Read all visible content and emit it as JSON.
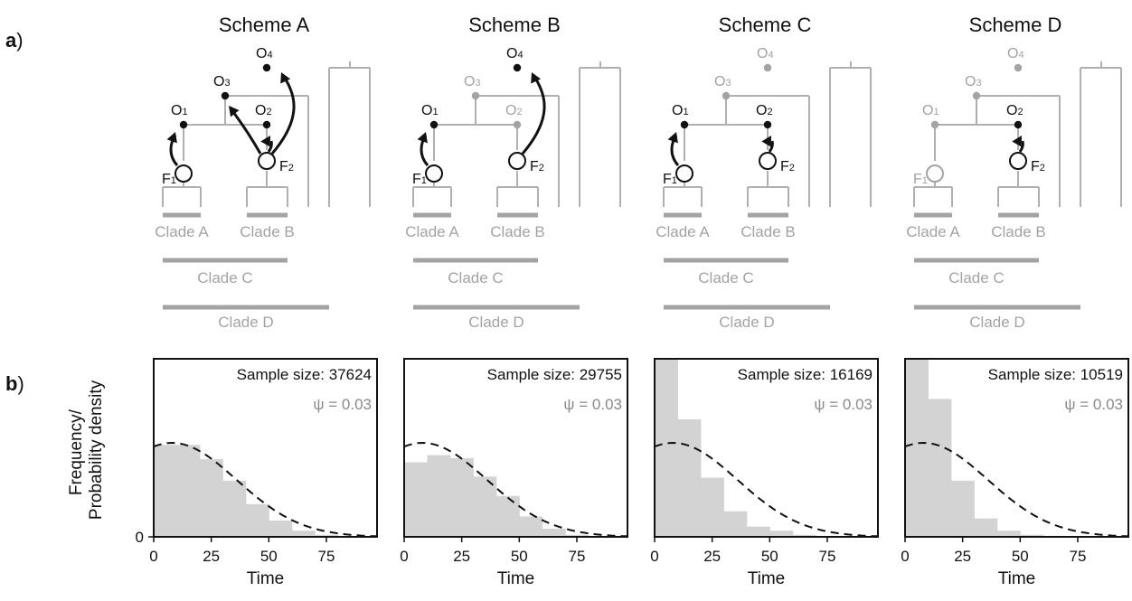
{
  "panel_labels": {
    "a": "a",
    "b": "b",
    "paren": ")"
  },
  "schemes": [
    {
      "title": "Scheme A",
      "tree_clades": [
        "Clade A",
        "Clade B",
        "Clade C",
        "Clade D"
      ],
      "nodes": {
        "O1": "active",
        "O2": "active",
        "O3": "active",
        "O4": "active",
        "F1": "active",
        "F2": "active"
      },
      "arrows": [
        "F1-O1",
        "F2-O2",
        "F2-O3",
        "F2-O4"
      ]
    },
    {
      "title": "Scheme B",
      "tree_clades": [
        "Clade A",
        "Clade B",
        "Clade C",
        "Clade D"
      ],
      "nodes": {
        "O1": "active",
        "O2": "inactive",
        "O3": "inactive",
        "O4": "active",
        "F1": "active",
        "F2": "active"
      },
      "arrows": [
        "F1-O1",
        "F2-O4"
      ]
    },
    {
      "title": "Scheme C",
      "tree_clades": [
        "Clade A",
        "Clade B",
        "Clade C",
        "Clade D"
      ],
      "nodes": {
        "O1": "active",
        "O2": "active",
        "O3": "inactive",
        "O4": "inactive",
        "F1": "active",
        "F2": "active"
      },
      "arrows": [
        "F1-O1",
        "F2-O2"
      ]
    },
    {
      "title": "Scheme D",
      "tree_clades": [
        "Clade A",
        "Clade B",
        "Clade C",
        "Clade D"
      ],
      "nodes": {
        "O1": "inactive",
        "O2": "active",
        "O3": "inactive",
        "O4": "inactive",
        "F1": "inactive",
        "F2": "active"
      },
      "arrows": [
        "F2-O2"
      ]
    }
  ],
  "node_labels": {
    "O": "O",
    "F": "F",
    "subs": [
      "1",
      "2",
      "3",
      "4"
    ]
  },
  "colors": {
    "active": "#111111",
    "inactive": "#a3a3a3",
    "tree": "#b0b0b0",
    "bars": "#d3d3d3",
    "clade_bar": "#a3a3a3"
  },
  "chart_data": [
    {
      "type": "bar",
      "title": "Scheme A",
      "annotation": "Sample size: 37624",
      "psi": "ψ = 0.03",
      "xlabel": "Time",
      "ylabel": "Frequency/\nProbability density",
      "xlim": [
        0,
        97
      ],
      "xticks": [
        0,
        25,
        50,
        75
      ],
      "yticks": [
        0
      ],
      "curve": "dashed density",
      "x": [
        0,
        10,
        20,
        30,
        40,
        50,
        60,
        70,
        80,
        90
      ],
      "values": [
        0.9,
        0.9,
        0.76,
        0.55,
        0.32,
        0.16,
        0.06,
        0.02,
        0.01,
        0
      ]
    },
    {
      "type": "bar",
      "title": "Scheme B",
      "annotation": "Sample size: 29755",
      "psi": "ψ = 0.03",
      "xlabel": "Time",
      "ylabel": "",
      "xlim": [
        0,
        97
      ],
      "xticks": [
        0,
        25,
        50,
        75
      ],
      "yticks": [
        0
      ],
      "curve": "dashed density",
      "x": [
        0,
        10,
        20,
        30,
        40,
        50,
        60,
        70,
        80,
        90
      ],
      "values": [
        0.73,
        0.8,
        0.77,
        0.59,
        0.4,
        0.2,
        0.08,
        0.02,
        0.01,
        0
      ]
    },
    {
      "type": "bar",
      "title": "Scheme C",
      "annotation": "Sample size: 16169",
      "psi": "ψ = 0.03",
      "xlabel": "Time",
      "ylabel": "",
      "xlim": [
        0,
        97
      ],
      "xticks": [
        0,
        25,
        50,
        75
      ],
      "yticks": [
        0
      ],
      "curve": "dashed density",
      "x": [
        0,
        10,
        20,
        30,
        40,
        50,
        60,
        70,
        80,
        90
      ],
      "values": [
        1.8,
        1.15,
        0.58,
        0.25,
        0.1,
        0.06,
        0.02,
        0.01,
        0,
        0
      ]
    },
    {
      "type": "bar",
      "title": "Scheme D",
      "annotation": "Sample size: 10519",
      "psi": "ψ = 0.03",
      "xlabel": "Time",
      "ylabel": "",
      "xlim": [
        0,
        97
      ],
      "xticks": [
        0,
        25,
        50,
        75
      ],
      "yticks": [
        0
      ],
      "curve": "dashed density",
      "x": [
        0,
        10,
        20,
        30,
        40,
        50,
        60,
        70,
        80,
        90
      ],
      "values": [
        2.2,
        1.35,
        0.55,
        0.18,
        0.06,
        0.02,
        0.01,
        0,
        0,
        0
      ]
    }
  ]
}
